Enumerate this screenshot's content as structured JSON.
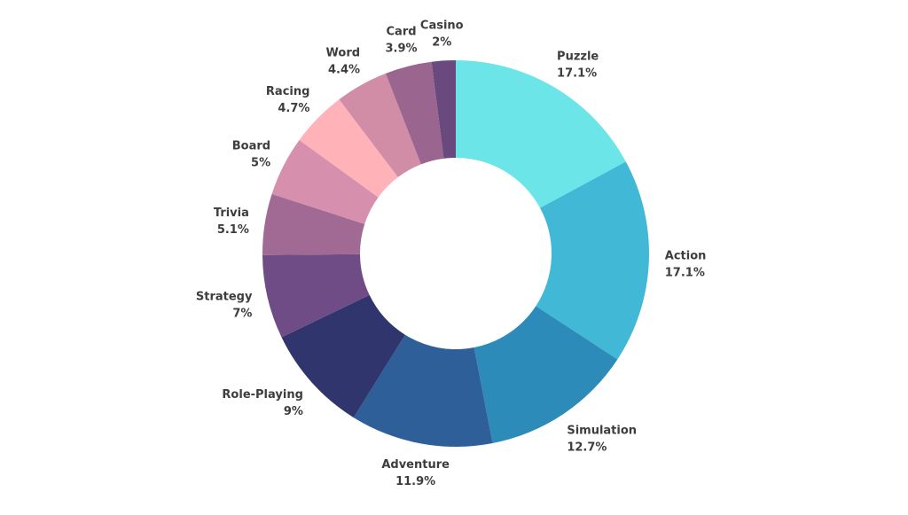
{
  "chart_data": {
    "type": "pie",
    "subtype": "donut",
    "title": "",
    "categories": [
      "Puzzle",
      "Action",
      "Simulation",
      "Adventure",
      "Role-Playing",
      "Strategy",
      "Trivia",
      "Board",
      "Racing",
      "Word",
      "Card",
      "Casino"
    ],
    "values": [
      17.1,
      17.1,
      12.7,
      11.9,
      9,
      7,
      5.1,
      5,
      4.7,
      4.4,
      3.9,
      2
    ],
    "value_labels": [
      "17.1%",
      "17.1%",
      "12.7%",
      "11.9%",
      "9%",
      "7%",
      "5.1%",
      "5%",
      "4.7%",
      "4.4%",
      "3.9%",
      "2%"
    ],
    "colors": [
      "#6be5e8",
      "#41b8d5",
      "#2d8bba",
      "#2f5f98",
      "#31356e",
      "#704c86",
      "#a06a94",
      "#d68fac",
      "#ffb3b9",
      "#d18ca6",
      "#9a6690",
      "#6a4a7e"
    ],
    "legend": "none",
    "labels_position": "outside"
  }
}
